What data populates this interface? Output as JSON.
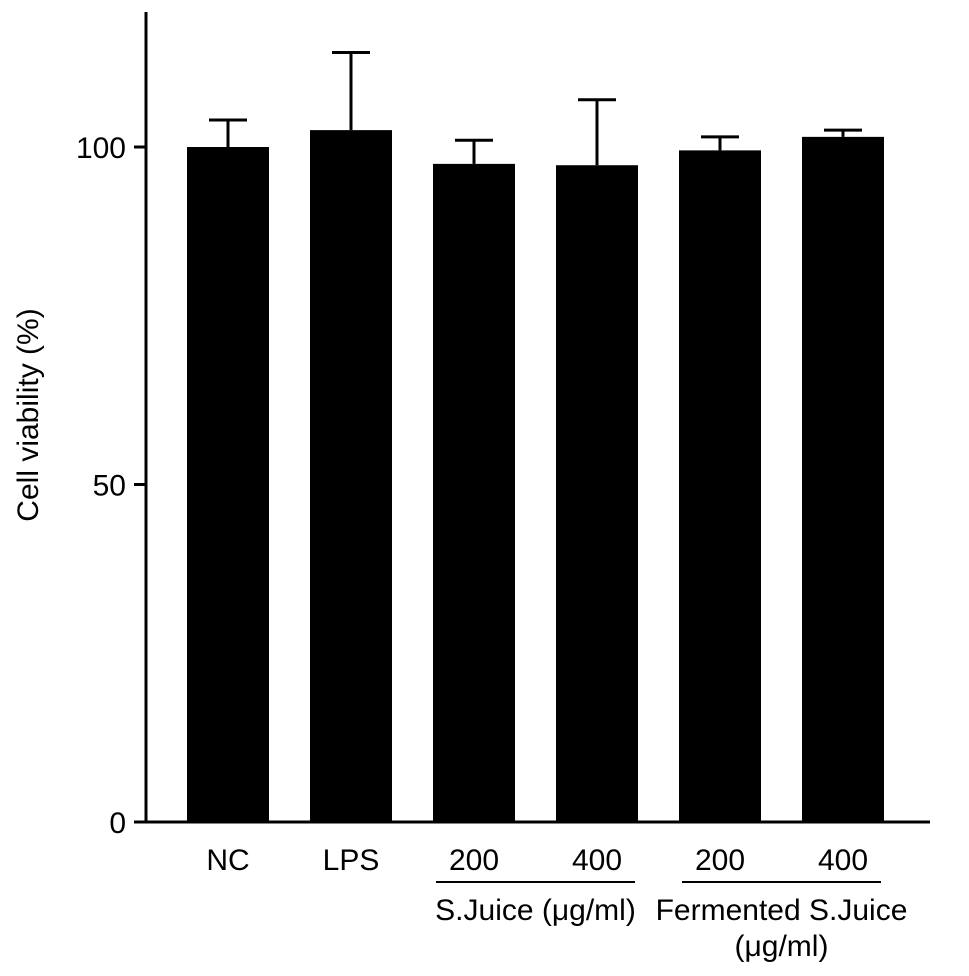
{
  "chart_data": {
    "type": "bar",
    "title": "",
    "xlabel": "",
    "ylabel": "Cell viability (%)",
    "ylim": [
      0,
      120
    ],
    "yticks": [
      0,
      50,
      100
    ],
    "categories": [
      "NC",
      "LPS",
      "200",
      "400",
      "200",
      "400"
    ],
    "values": [
      100,
      102.5,
      97.5,
      97.3,
      99.5,
      101.5
    ],
    "errors": [
      4,
      11.5,
      3.5,
      9.7,
      2.0,
      1.0
    ],
    "groups": [
      {
        "label": "S.Juice (μg/ml)",
        "categories": [
          2,
          3
        ]
      },
      {
        "label": "Fermented S.Juice\n(μg/ml)",
        "categories": [
          4,
          5
        ]
      }
    ],
    "bar_color": "#000000",
    "grid": false,
    "legend": "none"
  }
}
